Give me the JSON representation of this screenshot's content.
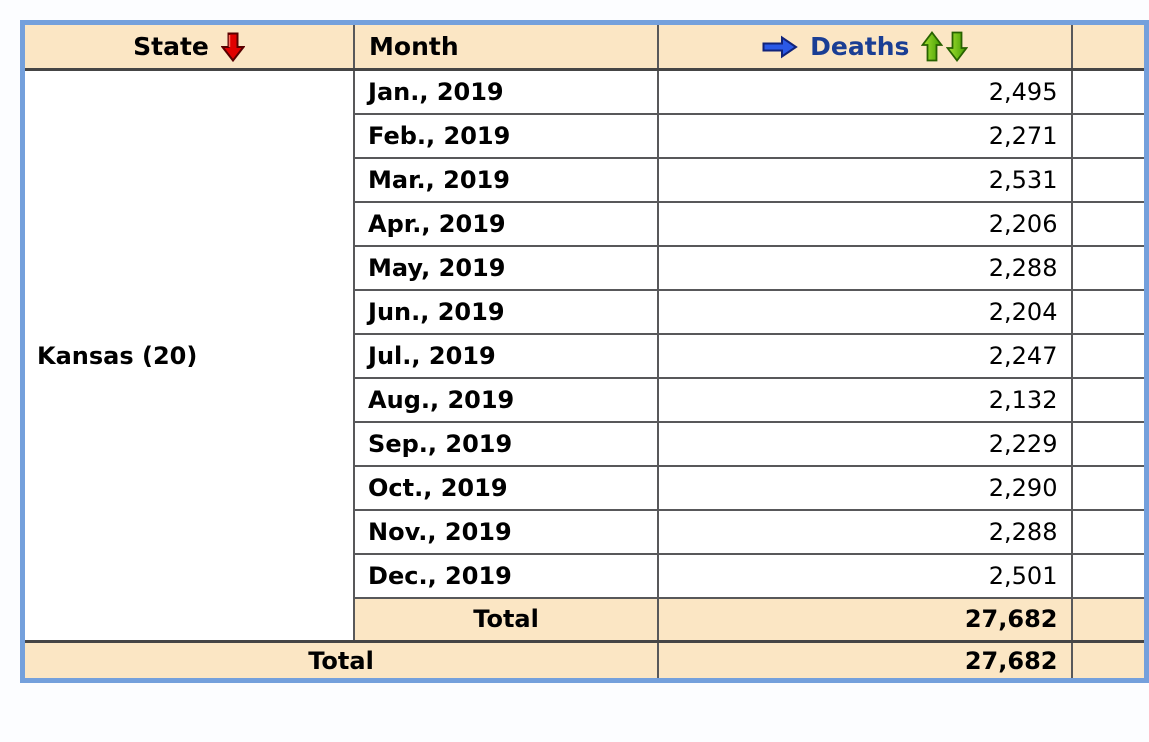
{
  "page": {
    "background_color": "#FCFDFF"
  },
  "table": {
    "header": {
      "state_label": "State",
      "month_label": "Month",
      "deaths_label": "Deaths"
    },
    "icons": {
      "state_sort": "red-down-arrow",
      "deaths_measure": "blue-right-arrow",
      "deaths_sort_ascending": "green-up-arrow",
      "deaths_sort_descending": "green-down-arrow"
    },
    "colors": {
      "outer_border": "#74A0DC",
      "header_background": "#FBE6C4",
      "grid_line": "#58585A",
      "deaths_header_text": "#1A3E94",
      "red_arrow": "#E10000",
      "blue_arrow": "#2B59E6",
      "green_arrow": "#4CA600"
    },
    "state_group": {
      "state_label": "Kansas (20)",
      "rows": [
        {
          "month": "Jan., 2019",
          "deaths": "2,495"
        },
        {
          "month": "Feb., 2019",
          "deaths": "2,271"
        },
        {
          "month": "Mar., 2019",
          "deaths": "2,531"
        },
        {
          "month": "Apr., 2019",
          "deaths": "2,206"
        },
        {
          "month": "May, 2019",
          "deaths": "2,288"
        },
        {
          "month": "Jun., 2019",
          "deaths": "2,204"
        },
        {
          "month": "Jul., 2019",
          "deaths": "2,247"
        },
        {
          "month": "Aug., 2019",
          "deaths": "2,132"
        },
        {
          "month": "Sep., 2019",
          "deaths": "2,229"
        },
        {
          "month": "Oct., 2019",
          "deaths": "2,290"
        },
        {
          "month": "Nov., 2019",
          "deaths": "2,288"
        },
        {
          "month": "Dec., 2019",
          "deaths": "2,501"
        }
      ],
      "subtotal": {
        "label": "Total",
        "deaths": "27,682"
      }
    },
    "grand_total": {
      "label": "Total",
      "deaths": "27,682"
    }
  }
}
